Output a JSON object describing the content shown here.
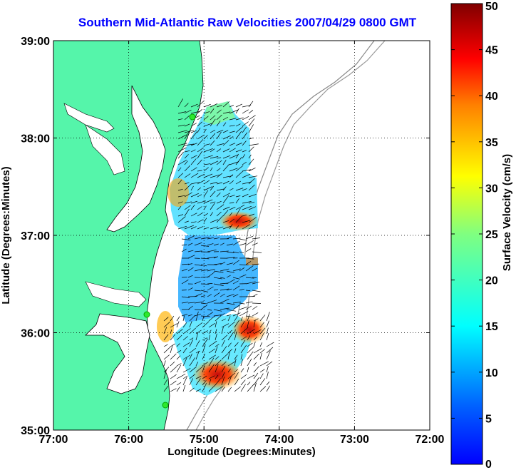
{
  "title": "Southern Mid-Atlantic Raw Velocities 2007/04/29 0800 GMT",
  "map": {
    "xlabel": "Longitude (Degrees:Minutes)",
    "ylabel": "Latitude (Degrees:Minutes)",
    "x_ticks": [
      "77:00",
      "76:00",
      "75:00",
      "74:00",
      "73:00",
      "72:00"
    ],
    "y_ticks": [
      "39:00",
      "38:00",
      "37:00",
      "36:00",
      "35:00"
    ],
    "land_color": "#55f5aa",
    "grid": "dotted"
  },
  "colorbar": {
    "label": "Surface Velocity (cm/s)",
    "ticks": [
      "0",
      "5",
      "10",
      "15",
      "20",
      "25",
      "30",
      "35",
      "40",
      "45",
      "50"
    ],
    "min": 0,
    "max": 50,
    "colormap": "jet"
  }
}
